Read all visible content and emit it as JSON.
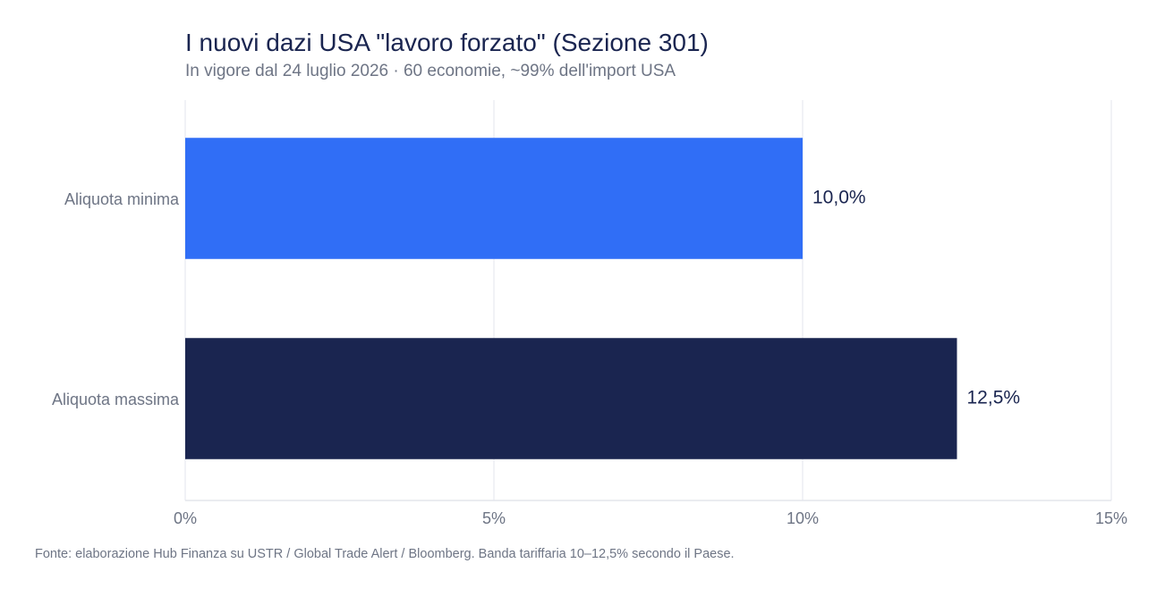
{
  "chart_data": {
    "type": "bar",
    "orientation": "horizontal",
    "title": "I nuovi dazi USA \"lavoro forzato\" (Sezione 301)",
    "subtitle": "In vigore dal 24 luglio 2026 · 60 economie, ~99% dell'import USA",
    "categories": [
      "Aliquota minima",
      "Aliquota massima"
    ],
    "values": [
      10.0,
      12.5
    ],
    "value_labels": [
      "10,0%",
      "12,5%"
    ],
    "colors": [
      "#306ef6",
      "#1a2550"
    ],
    "xlim": [
      0,
      15
    ],
    "xticks": [
      0,
      5,
      10,
      15
    ],
    "xtick_labels": [
      "0%",
      "5%",
      "10%",
      "15%"
    ],
    "grid": true,
    "xlabel": "",
    "ylabel": "",
    "source": "Fonte: elaborazione Hub Finanza su USTR / Global Trade Alert / Bloomberg. Banda tariffaria 10–12,5% secondo il Paese."
  }
}
